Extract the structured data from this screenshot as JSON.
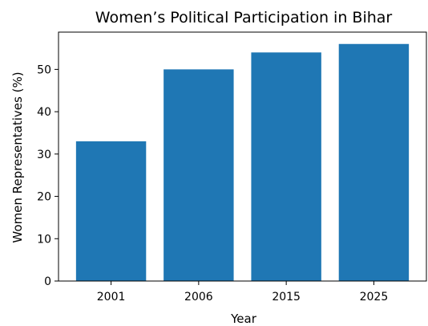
{
  "chart_data": {
    "type": "bar",
    "title": "Women’s Political Participation in Bihar",
    "xlabel": "Year",
    "ylabel": "Women Representatives (%)",
    "categories": [
      "2001",
      "2006",
      "2015",
      "2025"
    ],
    "values": [
      33,
      50,
      54,
      56
    ],
    "ylim": [
      0,
      58.8
    ],
    "yticks": [
      0,
      10,
      20,
      30,
      40,
      50
    ],
    "grid": false,
    "bar_color": "#1f77b4"
  }
}
